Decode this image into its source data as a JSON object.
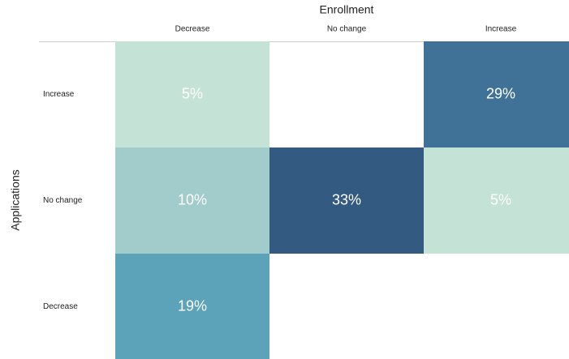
{
  "chart_data": {
    "type": "heatmap",
    "x_label": "Enrollment",
    "y_label": "Applications",
    "x_categories": [
      "Decrease",
      "No change",
      "Increase"
    ],
    "y_categories": [
      "Increase",
      "No change",
      "Decrease"
    ],
    "values": [
      [
        5,
        null,
        29
      ],
      [
        10,
        33,
        5
      ],
      [
        19,
        null,
        null
      ]
    ],
    "value_labels": [
      [
        "5%",
        null,
        "29%"
      ],
      [
        "10%",
        "33%",
        "5%"
      ],
      [
        "19%",
        null,
        null
      ]
    ],
    "colors": [
      [
        "#c4e2d6",
        null,
        "#3f7296"
      ],
      [
        "#a2cccc",
        "#335a81",
        "#c4e2d6"
      ],
      [
        "#5ca2b8",
        null,
        null
      ]
    ]
  }
}
